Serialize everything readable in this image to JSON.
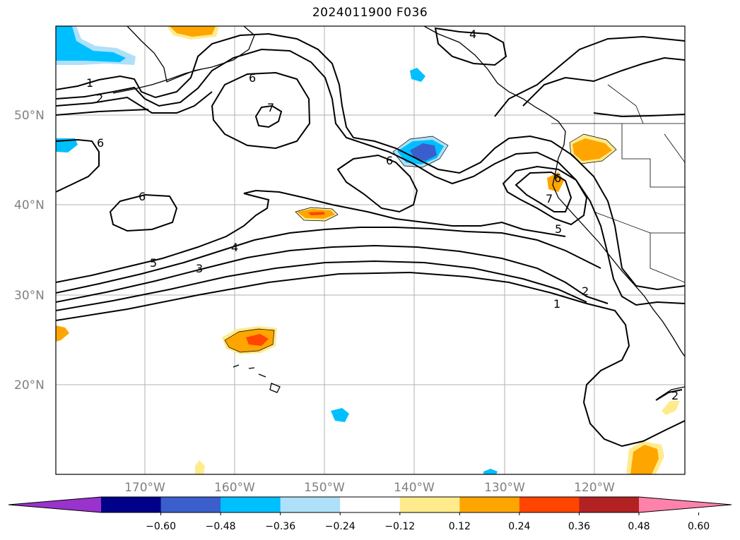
{
  "title": "2024011900 F036",
  "lat_labels": [
    "50°N",
    "40°N",
    "30°N",
    "20°N"
  ],
  "lon_labels": [
    "170°W",
    "160°W",
    "150°W",
    "140°W",
    "130°W",
    "120°W"
  ],
  "colorbar": {
    "tick_labels": [
      "−0.60",
      "−0.48",
      "−0.36",
      "−0.24",
      "−0.12",
      "0.12",
      "0.24",
      "0.36",
      "0.48",
      "0.60"
    ],
    "colors": [
      "#9933cc",
      "#000088",
      "#3a5fcd",
      "#00bfff",
      "#afe0fa",
      "#ffffff",
      "#ffeb8c",
      "#ffa500",
      "#ff4500",
      "#b22222",
      "#ff82ab"
    ]
  },
  "contour_labels": [
    "1",
    "2",
    "6",
    "7",
    "6",
    "6",
    "6",
    "5",
    "4",
    "3",
    "6",
    "7",
    "5",
    "2",
    "1",
    "2",
    "4"
  ]
}
